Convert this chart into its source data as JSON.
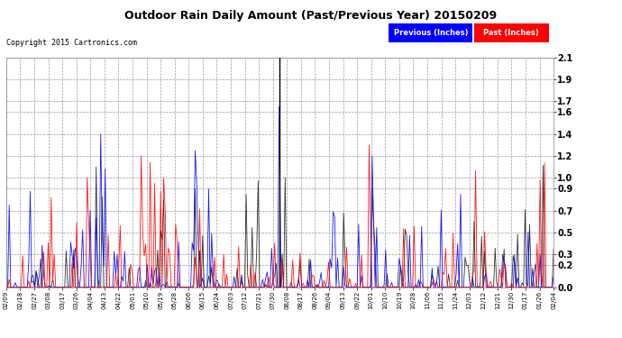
{
  "title": "Outdoor Rain Daily Amount (Past/Previous Year) 20150209",
  "copyright": "Copyright 2015 Cartronics.com",
  "legend_previous": "Previous (Inches)",
  "legend_past": "Past (Inches)",
  "previous_color": "#0000FF",
  "past_color": "#FF0000",
  "black_line_color": "#000000",
  "bg_color": "#FFFFFF",
  "plot_bg_color": "#FFFFFF",
  "grid_color": "#999999",
  "yticks": [
    0.0,
    0.2,
    0.3,
    0.5,
    0.7,
    0.9,
    1.0,
    1.2,
    1.4,
    1.6,
    1.7,
    1.9,
    2.1
  ],
  "ylim": [
    0.0,
    2.1
  ],
  "vline_index": 182,
  "n_points": 366,
  "x_tick_labels": [
    "02/09",
    "02/18",
    "02/27",
    "03/08",
    "03/17",
    "03/26",
    "04/04",
    "04/13",
    "04/22",
    "05/01",
    "05/10",
    "05/19",
    "05/28",
    "06/06",
    "06/15",
    "06/24",
    "07/03",
    "07/12",
    "07/21",
    "07/30",
    "08/08",
    "08/17",
    "08/26",
    "09/04",
    "09/13",
    "09/22",
    "10/01",
    "10/10",
    "10/19",
    "10/28",
    "11/06",
    "11/15",
    "11/24",
    "12/03",
    "12/12",
    "12/21",
    "12/30",
    "01/17",
    "01/26",
    "02/04"
  ]
}
